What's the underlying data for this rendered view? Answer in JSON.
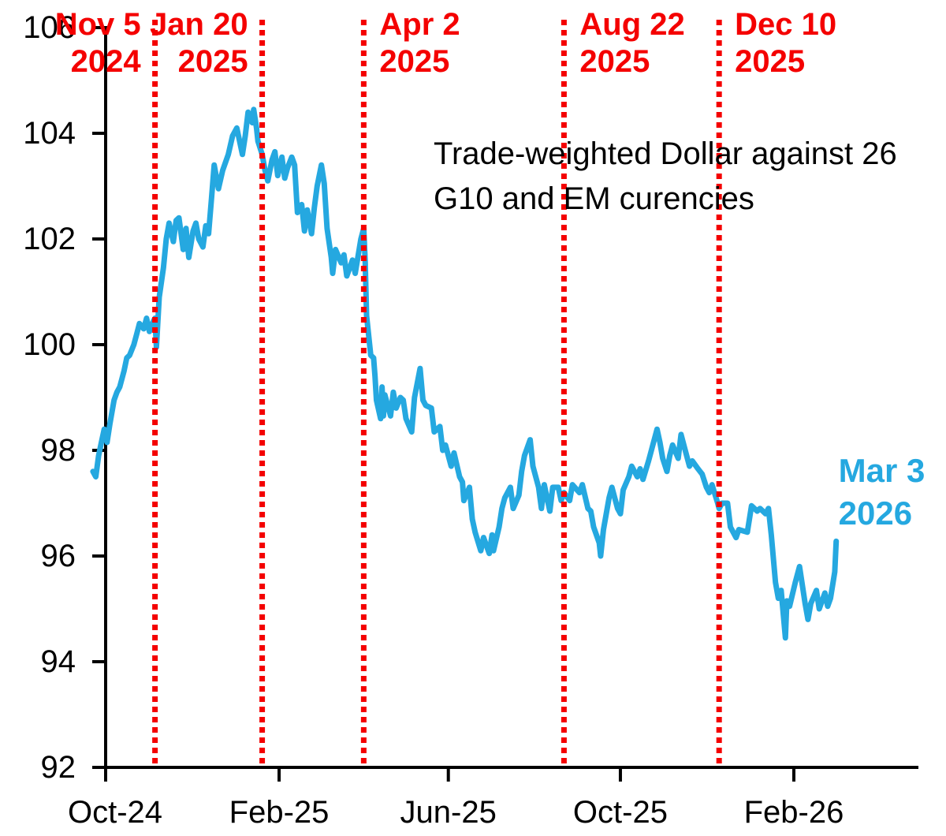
{
  "chart_data": {
    "type": "line",
    "note": {
      "line1": "Trade-weighted Dollar against 26",
      "line2": "G10 and EM curencies"
    },
    "y_axis": {
      "range": [
        92,
        106
      ],
      "ticks": [
        106,
        104,
        102,
        100,
        98,
        96,
        94,
        92
      ]
    },
    "x_axis": {
      "ticks": [
        {
          "label": "Oct-24",
          "date": "2024-10-01"
        },
        {
          "label": "Feb-25",
          "date": "2025-02-01"
        },
        {
          "label": "Jun-25",
          "date": "2025-06-01"
        },
        {
          "label": "Oct-25",
          "date": "2025-10-01"
        },
        {
          "label": "Feb-26",
          "date": "2026-02-01"
        }
      ]
    },
    "event_lines": [
      {
        "line1": "Nov 5",
        "line2": "2024",
        "date": "2024-11-05",
        "side": "left"
      },
      {
        "line1": "Jan 20",
        "line2": "2025",
        "date": "2025-01-20",
        "side": "left"
      },
      {
        "line1": "Apr 2",
        "line2": "2025",
        "date": "2025-04-02",
        "side": "right"
      },
      {
        "line1": "Aug 22",
        "line2": "2025",
        "date": "2025-08-22",
        "side": "right"
      },
      {
        "line1": "Dec 10",
        "line2": "2025",
        "date": "2025-12-10",
        "side": "right"
      }
    ],
    "end_label": {
      "line1": "Mar 3",
      "line2": "2026",
      "date": "2026-03-03",
      "value": 96.28
    },
    "colors": {
      "line": "#25a8e0",
      "event_red": "#f40000",
      "axis": "#000000",
      "text": "#000000"
    },
    "series": [
      {
        "points": [
          [
            "2024-09-22",
            97.6
          ],
          [
            "2024-09-24",
            97.5
          ],
          [
            "2024-09-26",
            97.9
          ],
          [
            "2024-09-28",
            98.15
          ],
          [
            "2024-09-30",
            98.4
          ],
          [
            "2024-10-02",
            98.15
          ],
          [
            "2024-10-04",
            98.5
          ],
          [
            "2024-10-07",
            98.95
          ],
          [
            "2024-10-09",
            99.1
          ],
          [
            "2024-10-11",
            99.2
          ],
          [
            "2024-10-14",
            99.5
          ],
          [
            "2024-10-16",
            99.75
          ],
          [
            "2024-10-18",
            99.8
          ],
          [
            "2024-10-21",
            100.0
          ],
          [
            "2024-10-23",
            100.2
          ],
          [
            "2024-10-25",
            100.4
          ],
          [
            "2024-10-28",
            100.3
          ],
          [
            "2024-10-30",
            100.5
          ],
          [
            "2024-11-01",
            100.25
          ],
          [
            "2024-11-04",
            100.45
          ],
          [
            "2024-11-05",
            100.5
          ],
          [
            "2024-11-06",
            99.95
          ],
          [
            "2024-11-08",
            100.9
          ],
          [
            "2024-11-11",
            101.45
          ],
          [
            "2024-11-13",
            102.0
          ],
          [
            "2024-11-15",
            102.3
          ],
          [
            "2024-11-18",
            101.95
          ],
          [
            "2024-11-20",
            102.35
          ],
          [
            "2024-11-22",
            102.4
          ],
          [
            "2024-11-25",
            101.8
          ],
          [
            "2024-11-27",
            102.2
          ],
          [
            "2024-11-29",
            101.65
          ],
          [
            "2024-12-02",
            102.15
          ],
          [
            "2024-12-04",
            102.3
          ],
          [
            "2024-12-06",
            102.0
          ],
          [
            "2024-12-09",
            101.85
          ],
          [
            "2024-12-11",
            102.25
          ],
          [
            "2024-12-13",
            102.1
          ],
          [
            "2024-12-15",
            102.75
          ],
          [
            "2024-12-17",
            103.4
          ],
          [
            "2024-12-20",
            102.95
          ],
          [
            "2024-12-23",
            103.3
          ],
          [
            "2024-12-27",
            103.6
          ],
          [
            "2024-12-30",
            103.95
          ],
          [
            "2025-01-02",
            104.1
          ],
          [
            "2025-01-06",
            103.6
          ],
          [
            "2025-01-08",
            103.95
          ],
          [
            "2025-01-10",
            104.4
          ],
          [
            "2025-01-13",
            104.2
          ],
          [
            "2025-01-14",
            104.45
          ],
          [
            "2025-01-16",
            104.1
          ],
          [
            "2025-01-17",
            103.85
          ],
          [
            "2025-01-20",
            103.6
          ],
          [
            "2025-01-22",
            103.3
          ],
          [
            "2025-01-24",
            103.1
          ],
          [
            "2025-01-27",
            103.5
          ],
          [
            "2025-01-29",
            103.65
          ],
          [
            "2025-01-31",
            103.2
          ],
          [
            "2025-02-03",
            103.55
          ],
          [
            "2025-02-05",
            103.15
          ],
          [
            "2025-02-07",
            103.35
          ],
          [
            "2025-02-10",
            103.55
          ],
          [
            "2025-02-12",
            103.4
          ],
          [
            "2025-02-14",
            102.5
          ],
          [
            "2025-02-17",
            102.65
          ],
          [
            "2025-02-19",
            102.15
          ],
          [
            "2025-02-21",
            102.55
          ],
          [
            "2025-02-24",
            102.1
          ],
          [
            "2025-02-26",
            102.6
          ],
          [
            "2025-02-28",
            103.0
          ],
          [
            "2025-03-03",
            103.4
          ],
          [
            "2025-03-05",
            103.05
          ],
          [
            "2025-03-07",
            102.2
          ],
          [
            "2025-03-10",
            101.65
          ],
          [
            "2025-03-11",
            101.35
          ],
          [
            "2025-03-13",
            101.8
          ],
          [
            "2025-03-17",
            101.55
          ],
          [
            "2025-03-19",
            101.7
          ],
          [
            "2025-03-21",
            101.3
          ],
          [
            "2025-03-25",
            101.6
          ],
          [
            "2025-03-27",
            101.35
          ],
          [
            "2025-03-31",
            102.0
          ],
          [
            "2025-04-02",
            102.2
          ],
          [
            "2025-04-03",
            101.6
          ],
          [
            "2025-04-04",
            100.55
          ],
          [
            "2025-04-07",
            99.8
          ],
          [
            "2025-04-09",
            99.75
          ],
          [
            "2025-04-10",
            99.4
          ],
          [
            "2025-04-11",
            98.95
          ],
          [
            "2025-04-14",
            98.6
          ],
          [
            "2025-04-15",
            99.2
          ],
          [
            "2025-04-16",
            98.65
          ],
          [
            "2025-04-17",
            99.05
          ],
          [
            "2025-04-21",
            98.65
          ],
          [
            "2025-04-23",
            99.1
          ],
          [
            "2025-04-25",
            98.8
          ],
          [
            "2025-04-28",
            99.0
          ],
          [
            "2025-04-30",
            98.95
          ],
          [
            "2025-05-02",
            98.6
          ],
          [
            "2025-05-06",
            98.35
          ],
          [
            "2025-05-08",
            99.0
          ],
          [
            "2025-05-12",
            99.55
          ],
          [
            "2025-05-14",
            98.95
          ],
          [
            "2025-05-16",
            98.85
          ],
          [
            "2025-05-20",
            98.8
          ],
          [
            "2025-05-22",
            98.35
          ],
          [
            "2025-05-26",
            98.45
          ],
          [
            "2025-05-28",
            98.0
          ],
          [
            "2025-05-30",
            98.1
          ],
          [
            "2025-06-03",
            97.7
          ],
          [
            "2025-06-05",
            97.95
          ],
          [
            "2025-06-09",
            97.5
          ],
          [
            "2025-06-11",
            97.4
          ],
          [
            "2025-06-12",
            97.05
          ],
          [
            "2025-06-16",
            97.3
          ],
          [
            "2025-06-18",
            96.7
          ],
          [
            "2025-06-20",
            96.45
          ],
          [
            "2025-06-24",
            96.1
          ],
          [
            "2025-06-26",
            96.35
          ],
          [
            "2025-06-30",
            96.05
          ],
          [
            "2025-07-02",
            96.4
          ],
          [
            "2025-07-03",
            96.1
          ],
          [
            "2025-07-07",
            96.55
          ],
          [
            "2025-07-09",
            96.9
          ],
          [
            "2025-07-11",
            97.1
          ],
          [
            "2025-07-15",
            97.3
          ],
          [
            "2025-07-17",
            96.9
          ],
          [
            "2025-07-21",
            97.15
          ],
          [
            "2025-07-23",
            97.6
          ],
          [
            "2025-07-25",
            97.9
          ],
          [
            "2025-07-29",
            98.2
          ],
          [
            "2025-07-31",
            97.7
          ],
          [
            "2025-08-04",
            97.3
          ],
          [
            "2025-08-06",
            96.9
          ],
          [
            "2025-08-08",
            97.35
          ],
          [
            "2025-08-12",
            96.85
          ],
          [
            "2025-08-14",
            97.3
          ],
          [
            "2025-08-18",
            97.3
          ],
          [
            "2025-08-20",
            97.05
          ],
          [
            "2025-08-22",
            97.2
          ],
          [
            "2025-08-26",
            97.05
          ],
          [
            "2025-08-28",
            97.35
          ],
          [
            "2025-09-02",
            97.2
          ],
          [
            "2025-09-04",
            97.35
          ],
          [
            "2025-09-08",
            96.9
          ],
          [
            "2025-09-10",
            96.85
          ],
          [
            "2025-09-12",
            96.55
          ],
          [
            "2025-09-16",
            96.25
          ],
          [
            "2025-09-17",
            96.0
          ],
          [
            "2025-09-19",
            96.5
          ],
          [
            "2025-09-23",
            97.1
          ],
          [
            "2025-09-25",
            97.3
          ],
          [
            "2025-09-29",
            96.9
          ],
          [
            "2025-10-01",
            96.8
          ],
          [
            "2025-10-03",
            97.25
          ],
          [
            "2025-10-07",
            97.5
          ],
          [
            "2025-10-09",
            97.7
          ],
          [
            "2025-10-13",
            97.5
          ],
          [
            "2025-10-15",
            97.65
          ],
          [
            "2025-10-17",
            97.45
          ],
          [
            "2025-10-21",
            97.8
          ],
          [
            "2025-10-23",
            98.0
          ],
          [
            "2025-10-27",
            98.4
          ],
          [
            "2025-10-29",
            98.15
          ],
          [
            "2025-10-31",
            97.85
          ],
          [
            "2025-11-03",
            97.6
          ],
          [
            "2025-11-05",
            97.9
          ],
          [
            "2025-11-07",
            98.1
          ],
          [
            "2025-11-11",
            97.85
          ],
          [
            "2025-11-13",
            98.3
          ],
          [
            "2025-11-17",
            97.9
          ],
          [
            "2025-11-19",
            97.7
          ],
          [
            "2025-11-21",
            97.8
          ],
          [
            "2025-11-25",
            97.65
          ],
          [
            "2025-11-28",
            97.55
          ],
          [
            "2025-12-01",
            97.3
          ],
          [
            "2025-12-03",
            97.2
          ],
          [
            "2025-12-05",
            97.35
          ],
          [
            "2025-12-09",
            97.0
          ],
          [
            "2025-12-10",
            96.9
          ],
          [
            "2025-12-12",
            97.0
          ],
          [
            "2025-12-16",
            97.0
          ],
          [
            "2025-12-18",
            96.55
          ],
          [
            "2025-12-22",
            96.35
          ],
          [
            "2025-12-24",
            96.5
          ],
          [
            "2025-12-30",
            96.45
          ],
          [
            "2026-01-02",
            96.95
          ],
          [
            "2026-01-06",
            96.85
          ],
          [
            "2026-01-08",
            96.9
          ],
          [
            "2026-01-12",
            96.8
          ],
          [
            "2026-01-14",
            96.9
          ],
          [
            "2026-01-16",
            96.4
          ],
          [
            "2026-01-19",
            95.5
          ],
          [
            "2026-01-21",
            95.2
          ],
          [
            "2026-01-23",
            95.35
          ],
          [
            "2026-01-26",
            94.45
          ],
          [
            "2026-01-27",
            95.15
          ],
          [
            "2026-01-29",
            95.05
          ],
          [
            "2026-02-02",
            95.5
          ],
          [
            "2026-02-05",
            95.8
          ],
          [
            "2026-02-09",
            95.1
          ],
          [
            "2026-02-11",
            94.8
          ],
          [
            "2026-02-13",
            95.1
          ],
          [
            "2026-02-17",
            95.35
          ],
          [
            "2026-02-19",
            95.0
          ],
          [
            "2026-02-23",
            95.3
          ],
          [
            "2026-02-25",
            95.05
          ],
          [
            "2026-02-27",
            95.2
          ],
          [
            "2026-03-02",
            95.7
          ],
          [
            "2026-03-03",
            96.28
          ]
        ]
      }
    ]
  }
}
